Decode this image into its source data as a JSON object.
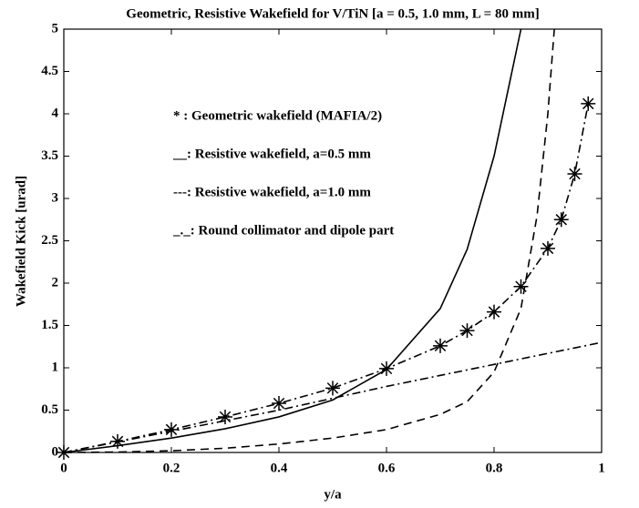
{
  "chart_data": {
    "type": "line",
    "title": "Geometric, Resistive Wakefield for V/TiN [a = 0.5, 1.0 mm, L = 80 mm]",
    "xlabel": "y/a",
    "ylabel": "Wakefield Kick [urad]",
    "xlim": [
      0,
      1
    ],
    "ylim": [
      0,
      5
    ],
    "xticks": [
      0,
      0.2,
      0.4,
      0.6,
      0.8,
      1
    ],
    "yticks": [
      0,
      0.5,
      1,
      1.5,
      2,
      2.5,
      3,
      3.5,
      4,
      4.5,
      5
    ],
    "series": [
      {
        "name": "* : Geometric wakefield (MAFIA/2)",
        "color": "#000",
        "style": "stars",
        "x": [
          0,
          0.1,
          0.2,
          0.3,
          0.4,
          0.5,
          0.6,
          0.7,
          0.75,
          0.8,
          0.85,
          0.9,
          0.925,
          0.95,
          0.975
        ],
        "values": [
          0,
          0.13,
          0.27,
          0.42,
          0.58,
          0.76,
          0.99,
          1.26,
          1.44,
          1.66,
          1.96,
          2.41,
          2.75,
          3.29,
          4.12
        ]
      },
      {
        "name": "__: Resistive wakefield, a=0.5 mm",
        "color": "#000",
        "style": "solid",
        "x": [
          0,
          0.1,
          0.2,
          0.3,
          0.4,
          0.5,
          0.6,
          0.7,
          0.75,
          0.8,
          0.83,
          0.85
        ],
        "values": [
          0,
          0.08,
          0.17,
          0.28,
          0.42,
          0.62,
          0.98,
          1.7,
          2.4,
          3.5,
          4.4,
          5
        ]
      },
      {
        "name": "---: Resistive wakefield, a=1.0 mm",
        "color": "#000",
        "style": "dashed",
        "x": [
          0,
          0.1,
          0.2,
          0.3,
          0.4,
          0.5,
          0.6,
          0.7,
          0.75,
          0.8,
          0.85,
          0.88,
          0.9,
          0.912
        ],
        "values": [
          0,
          0.005,
          0.02,
          0.05,
          0.1,
          0.17,
          0.27,
          0.45,
          0.6,
          0.95,
          1.7,
          2.8,
          4.0,
          5
        ]
      },
      {
        "name": "_._: Round collimator and dipole part",
        "color": "#000",
        "style": "dashdot",
        "x": [
          0,
          0.2,
          0.4,
          0.6,
          0.8,
          1
        ],
        "values": [
          0,
          0.25,
          0.5,
          0.78,
          1.04,
          1.3
        ]
      }
    ]
  }
}
